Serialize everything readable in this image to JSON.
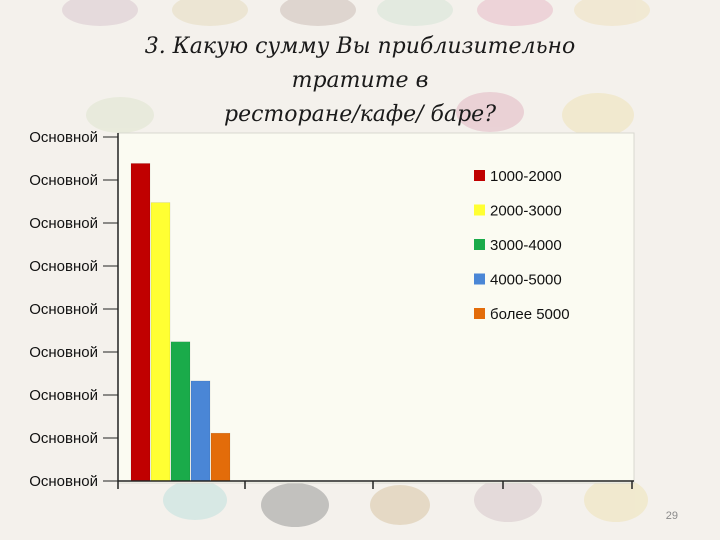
{
  "slide": {
    "title_line1": "3. Какую сумму Вы приблизительно тратите в",
    "title_line2": "ресторане/кафе/ баре?",
    "page_number": "29"
  },
  "chart_data": {
    "type": "bar",
    "title": "",
    "y_tick_labels": [
      "Основной",
      "Основной",
      "Основной",
      "Основной",
      "Основной",
      "Основной",
      "Основной",
      "Основной",
      "Основной"
    ],
    "ylim": [
      0,
      8
    ],
    "grid": false,
    "legend_position": "top-right",
    "series": [
      {
        "name": "1000-2000",
        "values": [
          7.3
        ],
        "color": "#c00000"
      },
      {
        "name": "2000-3000",
        "values": [
          6.4
        ],
        "color": "#ffff33"
      },
      {
        "name": "3000-4000",
        "values": [
          3.2
        ],
        "color": "#1aab4a"
      },
      {
        "name": "4000-5000",
        "values": [
          2.3
        ],
        "color": "#4a86d6"
      },
      {
        "name": "более 5000",
        "values": [
          1.1
        ],
        "color": "#e36c0a"
      }
    ]
  }
}
